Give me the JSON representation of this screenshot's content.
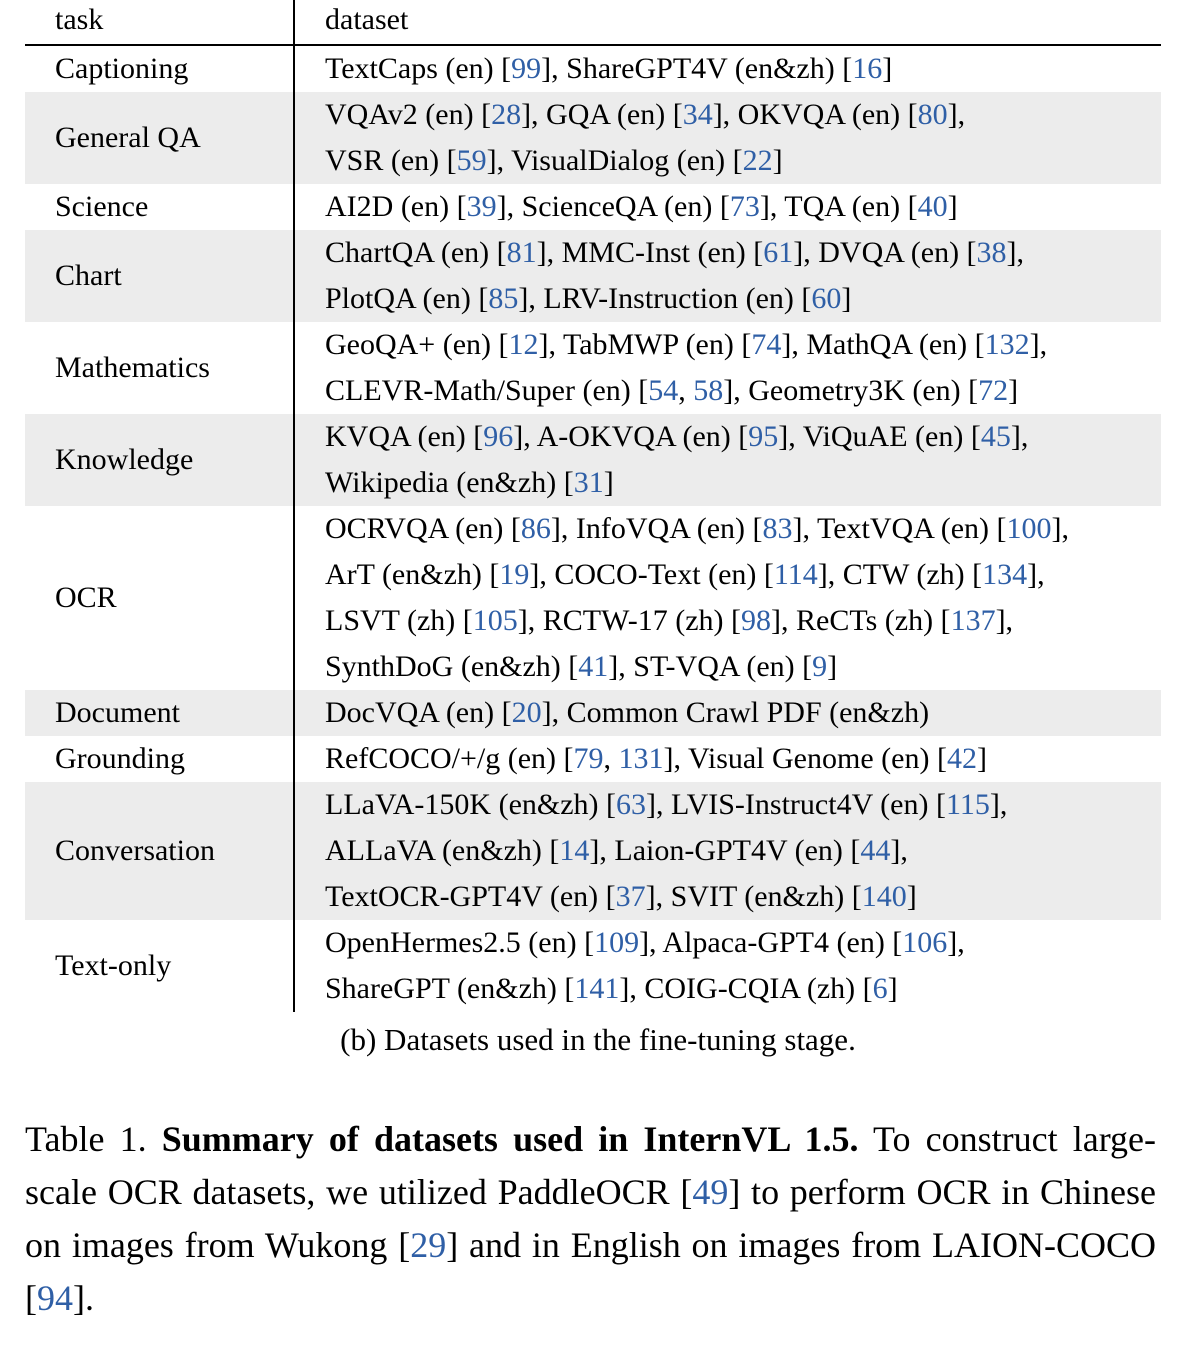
{
  "header": {
    "task": "task",
    "dataset": "dataset"
  },
  "rows": [
    {
      "task": "Captioning",
      "shaded": false,
      "lines": [
        [
          {
            "t": "TextCaps (en) ["
          },
          {
            "r": "99"
          },
          {
            "t": "], ShareGPT4V (en&zh) ["
          },
          {
            "r": "16"
          },
          {
            "t": "]"
          }
        ]
      ]
    },
    {
      "task": "General QA",
      "shaded": true,
      "lines": [
        [
          {
            "t": "VQAv2 (en) ["
          },
          {
            "r": "28"
          },
          {
            "t": "], GQA (en) ["
          },
          {
            "r": "34"
          },
          {
            "t": "], OKVQA (en) ["
          },
          {
            "r": "80"
          },
          {
            "t": "],"
          }
        ],
        [
          {
            "t": "VSR (en) ["
          },
          {
            "r": "59"
          },
          {
            "t": "], VisualDialog (en) ["
          },
          {
            "r": "22"
          },
          {
            "t": "]"
          }
        ]
      ]
    },
    {
      "task": "Science",
      "shaded": false,
      "lines": [
        [
          {
            "t": "AI2D (en) ["
          },
          {
            "r": "39"
          },
          {
            "t": "], ScienceQA (en) ["
          },
          {
            "r": "73"
          },
          {
            "t": "], TQA (en) ["
          },
          {
            "r": "40"
          },
          {
            "t": "]"
          }
        ]
      ]
    },
    {
      "task": "Chart",
      "shaded": true,
      "lines": [
        [
          {
            "t": "ChartQA (en) ["
          },
          {
            "r": "81"
          },
          {
            "t": "], MMC-Inst (en) ["
          },
          {
            "r": "61"
          },
          {
            "t": "], DVQA (en) ["
          },
          {
            "r": "38"
          },
          {
            "t": "],"
          }
        ],
        [
          {
            "t": "PlotQA (en) ["
          },
          {
            "r": "85"
          },
          {
            "t": "], LRV-Instruction (en) ["
          },
          {
            "r": "60"
          },
          {
            "t": "]"
          }
        ]
      ]
    },
    {
      "task": "Mathematics",
      "shaded": false,
      "lines": [
        [
          {
            "t": "GeoQA+ (en) ["
          },
          {
            "r": "12"
          },
          {
            "t": "], TabMWP (en) ["
          },
          {
            "r": "74"
          },
          {
            "t": "], MathQA (en) ["
          },
          {
            "r": "132"
          },
          {
            "t": "],"
          }
        ],
        [
          {
            "t": "CLEVR-Math/Super (en) ["
          },
          {
            "r": "54"
          },
          {
            "t": ", "
          },
          {
            "r": "58"
          },
          {
            "t": "], Geometry3K (en) ["
          },
          {
            "r": "72"
          },
          {
            "t": "]"
          }
        ]
      ]
    },
    {
      "task": "Knowledge",
      "shaded": true,
      "lines": [
        [
          {
            "t": "KVQA (en) ["
          },
          {
            "r": "96"
          },
          {
            "t": "], A-OKVQA (en) ["
          },
          {
            "r": "95"
          },
          {
            "t": "], ViQuAE (en) ["
          },
          {
            "r": "45"
          },
          {
            "t": "],"
          }
        ],
        [
          {
            "t": "Wikipedia (en&zh) ["
          },
          {
            "r": "31"
          },
          {
            "t": "]"
          }
        ]
      ]
    },
    {
      "task": "OCR",
      "shaded": false,
      "lines": [
        [
          {
            "t": "OCRVQA (en) ["
          },
          {
            "r": "86"
          },
          {
            "t": "], InfoVQA (en) ["
          },
          {
            "r": "83"
          },
          {
            "t": "], TextVQA (en) ["
          },
          {
            "r": "100"
          },
          {
            "t": "],"
          }
        ],
        [
          {
            "t": "ArT (en&zh) ["
          },
          {
            "r": "19"
          },
          {
            "t": "], COCO-Text (en) ["
          },
          {
            "r": "114"
          },
          {
            "t": "], CTW (zh) ["
          },
          {
            "r": "134"
          },
          {
            "t": "],"
          }
        ],
        [
          {
            "t": "LSVT (zh) ["
          },
          {
            "r": "105"
          },
          {
            "t": "], RCTW-17 (zh) ["
          },
          {
            "r": "98"
          },
          {
            "t": "], ReCTs (zh) ["
          },
          {
            "r": "137"
          },
          {
            "t": "],"
          }
        ],
        [
          {
            "t": "SynthDoG (en&zh) ["
          },
          {
            "r": "41"
          },
          {
            "t": "], ST-VQA (en) ["
          },
          {
            "r": "9"
          },
          {
            "t": "]"
          }
        ]
      ]
    },
    {
      "task": "Document",
      "shaded": true,
      "lines": [
        [
          {
            "t": "DocVQA (en) ["
          },
          {
            "r": "20"
          },
          {
            "t": "], Common Crawl PDF (en&zh)"
          }
        ]
      ]
    },
    {
      "task": "Grounding",
      "shaded": false,
      "lines": [
        [
          {
            "t": "RefCOCO/+/g (en) ["
          },
          {
            "r": "79"
          },
          {
            "t": ", "
          },
          {
            "r": "131"
          },
          {
            "t": "], Visual Genome (en) ["
          },
          {
            "r": "42"
          },
          {
            "t": "]"
          }
        ]
      ]
    },
    {
      "task": "Conversation",
      "shaded": true,
      "lines": [
        [
          {
            "t": "LLaVA-150K (en&zh) ["
          },
          {
            "r": "63"
          },
          {
            "t": "], LVIS-Instruct4V (en) ["
          },
          {
            "r": "115"
          },
          {
            "t": "],"
          }
        ],
        [
          {
            "t": "ALLaVA (en&zh) ["
          },
          {
            "r": "14"
          },
          {
            "t": "], Laion-GPT4V (en) ["
          },
          {
            "r": "44"
          },
          {
            "t": "],"
          }
        ],
        [
          {
            "t": "TextOCR-GPT4V (en) ["
          },
          {
            "r": "37"
          },
          {
            "t": "], SVIT (en&zh) ["
          },
          {
            "r": "140"
          },
          {
            "t": "]"
          }
        ]
      ]
    },
    {
      "task": "Text-only",
      "shaded": false,
      "lines": [
        [
          {
            "t": "OpenHermes2.5 (en) ["
          },
          {
            "r": "109"
          },
          {
            "t": "], Alpaca-GPT4 (en) ["
          },
          {
            "r": "106"
          },
          {
            "t": "],"
          }
        ],
        [
          {
            "t": "ShareGPT (en&zh) ["
          },
          {
            "r": "141"
          },
          {
            "t": "], COIG-CQIA (zh) ["
          },
          {
            "r": "6"
          },
          {
            "t": "]"
          }
        ]
      ]
    }
  ],
  "subcaption": "(b) Datasets used in the fine-tuning stage.",
  "caption": [
    {
      "t": "Table 1. "
    },
    {
      "b": "Summary of datasets used in InternVL 1.5."
    },
    {
      "t": " To construct large-scale OCR datasets, we utilized PaddleOCR ["
    },
    {
      "r": "49"
    },
    {
      "t": "] to perform OCR in Chinese on images from Wukong ["
    },
    {
      "r": "29"
    },
    {
      "t": "] and in English on images from LAION-COCO ["
    },
    {
      "r": "94"
    },
    {
      "t": "]."
    }
  ],
  "colors": {
    "reference": "#2f5fa6",
    "row_shade": "#ececec",
    "text": "#000000"
  }
}
